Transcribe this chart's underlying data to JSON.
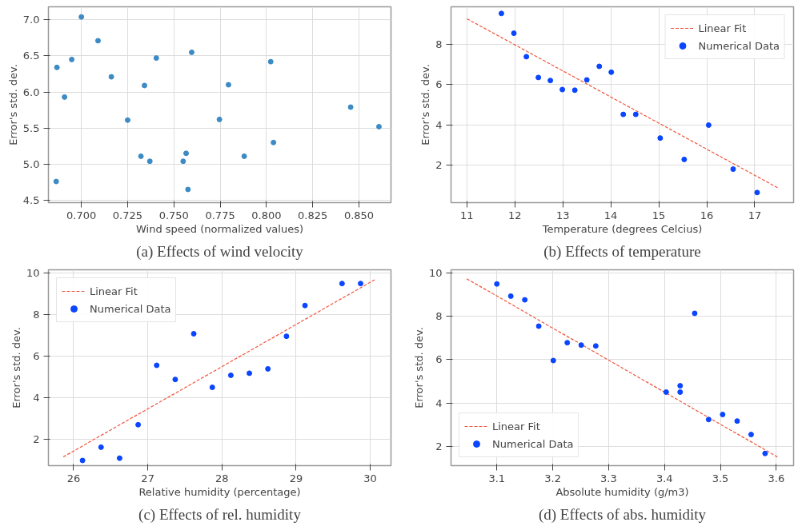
{
  "chart_data": [
    {
      "type": "scatter",
      "title": "(a) Effects of wind velocity",
      "xlabel": "Wind speed (normalized values)",
      "ylabel": "Error's std. dev.",
      "grid": true,
      "xlim": [
        0.6822,
        0.8673
      ],
      "ylim": [
        4.467,
        7.18
      ],
      "xticks": [
        {
          "value": 0.7,
          "label": "0.700"
        },
        {
          "value": 0.725,
          "label": "0.725"
        },
        {
          "value": 0.75,
          "label": "0.750"
        },
        {
          "value": 0.775,
          "label": "0.775"
        },
        {
          "value": 0.8,
          "label": "0.800"
        },
        {
          "value": 0.825,
          "label": "0.825"
        },
        {
          "value": 0.85,
          "label": "0.850"
        }
      ],
      "yticks": [
        {
          "value": 4.5,
          "label": "4.5"
        },
        {
          "value": 5,
          "label": "5.0"
        },
        {
          "value": 5.5,
          "label": "5.5"
        },
        {
          "value": 6,
          "label": "6.0"
        },
        {
          "value": 6.5,
          "label": "6.5"
        },
        {
          "value": 7,
          "label": "7.0"
        }
      ],
      "series": [
        {
          "marker": "circle",
          "color": "#3c8bc4",
          "x": [
            0.6864,
            0.6868,
            0.6909,
            0.6948,
            0.7,
            0.709,
            0.7162,
            0.725,
            0.7322,
            0.7341,
            0.737,
            0.7405,
            0.755,
            0.7566,
            0.7576,
            0.7596,
            0.7746,
            0.7795,
            0.788,
            0.8023,
            0.8038,
            0.8455,
            0.8608
          ],
          "values": [
            4.76,
            6.34,
            5.93,
            6.45,
            7.04,
            6.71,
            6.21,
            5.61,
            5.11,
            6.09,
            5.04,
            6.47,
            5.04,
            5.15,
            4.65,
            6.55,
            5.62,
            6.1,
            5.11,
            6.42,
            5.3,
            5.79,
            5.52
          ]
        }
      ]
    },
    {
      "type": "scatter",
      "title": "(b) Effects of temperature",
      "xlabel": "Temperature (degrees Celcius)",
      "ylabel": "Error's std. dev.",
      "grid": true,
      "legend": "top right",
      "xlim": [
        10.67,
        17.81
      ],
      "ylim": [
        0.15,
        9.85
      ],
      "xticks": [
        11,
        12,
        13,
        14,
        15,
        16,
        17
      ],
      "yticks": [
        2,
        4,
        6,
        8
      ],
      "series": [
        {
          "type": "line",
          "name": "Linear Fit",
          "color": "#f0553a",
          "line_style": "dashed",
          "x": [
            11.0,
            17.5
          ],
          "values": [
            9.26,
            0.86
          ]
        },
        {
          "marker": "circle",
          "name": "Numerical Data",
          "color": "#0a45ff",
          "x": [
            11.72,
            11.98,
            12.24,
            12.49,
            12.74,
            12.99,
            13.25,
            13.5,
            13.76,
            14.01,
            14.26,
            14.52,
            15.03,
            15.53,
            16.04,
            16.55,
            17.05
          ],
          "values": [
            9.52,
            8.54,
            7.38,
            6.35,
            6.2,
            5.75,
            5.72,
            6.23,
            6.9,
            6.61,
            4.52,
            4.52,
            3.35,
            2.29,
            3.99,
            1.81,
            0.65
          ]
        }
      ]
    },
    {
      "type": "scatter",
      "title": "(c) Effects of rel. humidity",
      "xlabel": "Relative humidity (percentage)",
      "ylabel": "Error's std. dev.",
      "grid": true,
      "legend": "top left",
      "xlim": [
        25.66,
        30.28
      ],
      "ylim": [
        0.73,
        10.16
      ],
      "xticks": [
        26,
        27,
        28,
        29,
        30
      ],
      "yticks": [
        2,
        4,
        6,
        8,
        10
      ],
      "series": [
        {
          "type": "line",
          "name": "Linear Fit",
          "color": "#f0553a",
          "line_style": "dashed",
          "x": [
            25.86,
            30.06
          ],
          "values": [
            1.15,
            9.68
          ]
        },
        {
          "marker": "circle",
          "name": "Numerical Data",
          "color": "#0a45ff",
          "x": [
            26.12,
            26.37,
            26.62,
            26.87,
            27.12,
            27.37,
            27.62,
            27.87,
            28.12,
            28.37,
            28.62,
            28.87,
            29.12,
            29.62,
            29.87
          ],
          "values": [
            0.98,
            1.62,
            1.09,
            2.7,
            5.56,
            4.88,
            7.08,
            4.5,
            5.08,
            5.18,
            5.39,
            6.96,
            8.44,
            9.5,
            9.5
          ]
        }
      ]
    },
    {
      "type": "scatter",
      "title": "(d) Effects of abs. humidity",
      "xlabel": "Absolute humidity (g/m3)",
      "ylabel": "Error's std. dev.",
      "grid": true,
      "legend": "bottom left",
      "xlim": [
        3.018,
        3.631
      ],
      "ylim": [
        1.13,
        10.13
      ],
      "xticks": [
        3.1,
        3.2,
        3.3,
        3.4,
        3.5,
        3.6
      ],
      "yticks": [
        2,
        4,
        6,
        8,
        10
      ],
      "series": [
        {
          "type": "line",
          "name": "Linear Fit",
          "color": "#f0553a",
          "line_style": "dashed",
          "x": [
            3.046,
            3.602
          ],
          "values": [
            9.72,
            1.53
          ]
        },
        {
          "marker": "circle",
          "name": "Numerical Data",
          "color": "#0a45ff",
          "x": [
            3.1,
            3.125,
            3.15,
            3.175,
            3.201,
            3.226,
            3.251,
            3.277,
            3.403,
            3.428,
            3.428,
            3.454,
            3.479,
            3.504,
            3.53,
            3.555,
            3.58
          ],
          "values": [
            9.48,
            8.92,
            8.75,
            7.54,
            5.96,
            6.78,
            6.67,
            6.63,
            4.51,
            4.8,
            4.51,
            8.13,
            3.25,
            3.48,
            3.18,
            2.56,
            1.69
          ]
        }
      ]
    }
  ]
}
